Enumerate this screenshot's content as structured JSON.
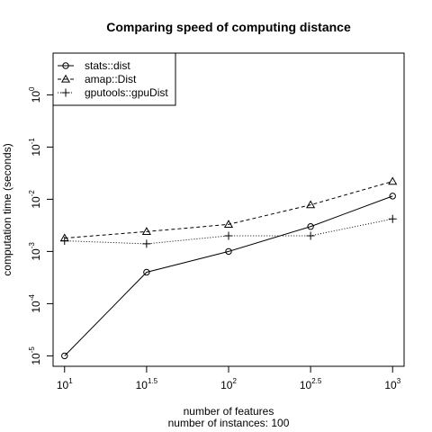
{
  "chart_data": {
    "type": "line",
    "title": "Comparing speed of computing distance",
    "xlabel": "number of features",
    "xlabel2": "number of instances: 100",
    "ylabel": "computation time (seconds)",
    "xscale": "log10",
    "yscale": "log10",
    "x": [
      10,
      31.62,
      100,
      316.2,
      1000
    ],
    "xlim_exp": [
      0.93,
      3.07
    ],
    "ylim_exp": [
      -5.2,
      0.8
    ],
    "x_ticks": [
      {
        "base": "10",
        "exp": "1",
        "value_exp": 1
      },
      {
        "base": "10",
        "exp": "1.5",
        "value_exp": 1.5
      },
      {
        "base": "10",
        "exp": "2",
        "value_exp": 2
      },
      {
        "base": "10",
        "exp": "2.5",
        "value_exp": 2.5
      },
      {
        "base": "10",
        "exp": "3",
        "value_exp": 3
      }
    ],
    "y_ticks": [
      {
        "base": "10",
        "exp": "-5",
        "value_exp": -5
      },
      {
        "base": "10",
        "exp": "-4",
        "value_exp": -4
      },
      {
        "base": "10",
        "exp": "-3",
        "value_exp": -3
      },
      {
        "base": "10",
        "exp": "-2",
        "value_exp": -2
      },
      {
        "base": "10",
        "exp": "-1",
        "value_exp": -1
      },
      {
        "base": "10",
        "exp": "0",
        "value_exp": 0
      }
    ],
    "series": [
      {
        "name": "stats::dist",
        "marker": "circle",
        "linestyle": "solid",
        "values": [
          1e-05,
          0.0004,
          0.001,
          0.003,
          0.0115
        ]
      },
      {
        "name": "amap::Dist",
        "marker": "triangle",
        "linestyle": "dashed",
        "values": [
          0.0018,
          0.0024,
          0.0033,
          0.0078,
          0.022
        ]
      },
      {
        "name": "gputools::gpuDist",
        "marker": "plus",
        "linestyle": "dotted",
        "values": [
          0.0016,
          0.0014,
          0.002,
          0.002,
          0.0042
        ]
      }
    ],
    "legend_position": "top-left",
    "grid": false,
    "colors": {
      "line": "#000000",
      "background": "#ffffff"
    }
  }
}
